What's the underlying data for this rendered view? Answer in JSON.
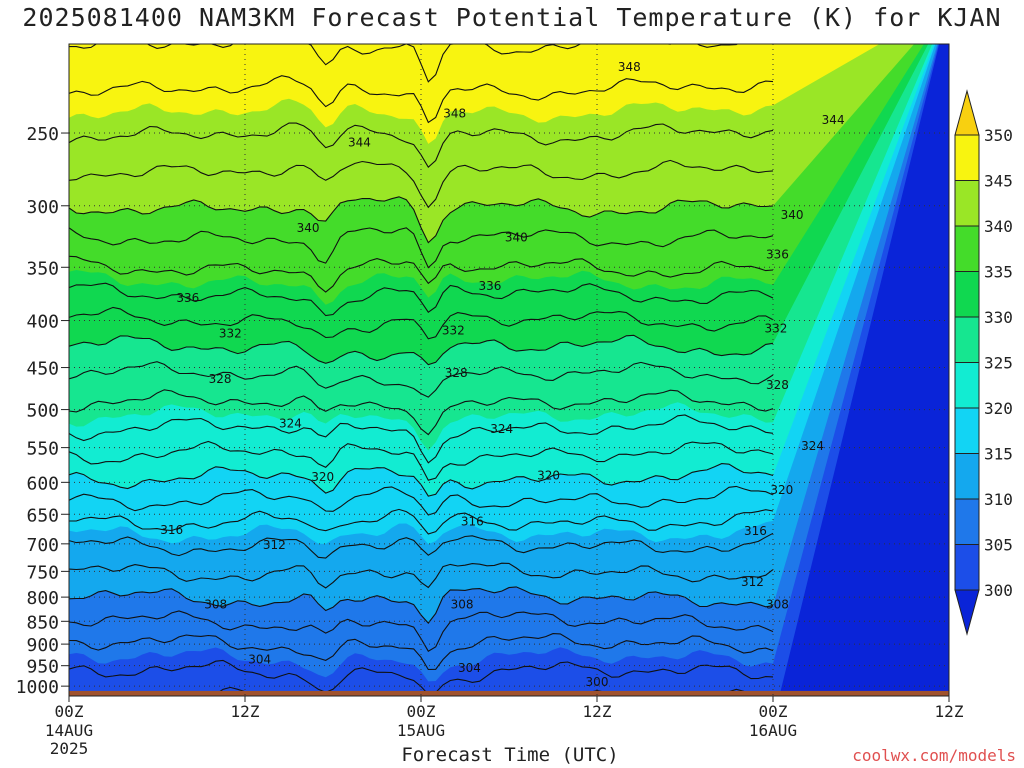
{
  "chart_data": {
    "type": "contour-filled",
    "title": "2025081400 NAM3KM Forecast Potential Temperature (K) for KJAN",
    "xlabel": "Forecast Time (UTC)",
    "ylabel": "",
    "credit": "coolwx.com/models",
    "x_hours": [
      0,
      48
    ],
    "x_ticks": [
      {
        "hour": 0,
        "label": "00Z",
        "sub": "14AUG",
        "sub2": "2025"
      },
      {
        "hour": 12,
        "label": "12Z",
        "sub": "",
        "sub2": ""
      },
      {
        "hour": 24,
        "label": "00Z",
        "sub": "15AUG",
        "sub2": ""
      },
      {
        "hour": 36,
        "label": "12Z",
        "sub": "",
        "sub2": ""
      },
      {
        "hour": 48,
        "label": "00Z",
        "sub": "16AUG",
        "sub2": ""
      },
      {
        "hour": 60,
        "label": "12Z",
        "sub": "",
        "sub2": ""
      }
    ],
    "x_range_hours": [
      0,
      60
    ],
    "y_scale": "log-pressure",
    "y_range_hpa": [
      1025,
      200
    ],
    "y_ticks": [
      250,
      300,
      350,
      400,
      450,
      500,
      550,
      600,
      650,
      700,
      750,
      800,
      850,
      900,
      950,
      1000
    ],
    "grid": true,
    "colorbar": {
      "levels": [
        300,
        305,
        310,
        315,
        320,
        325,
        330,
        335,
        340,
        345,
        350
      ],
      "colors": [
        "#0a24d8",
        "#1c4ee8",
        "#1f78ea",
        "#14a8ee",
        "#12d4f4",
        "#12ecd2",
        "#16e690",
        "#10d850",
        "#44dc2a",
        "#9ae626",
        "#f8f410",
        "#f8d010"
      ],
      "extend": "both"
    },
    "profile_levels_hpa": [
      1000,
      950,
      900,
      850,
      800,
      750,
      700,
      650,
      600,
      550,
      500,
      450,
      400,
      350,
      300,
      250,
      200
    ],
    "profile_theta_k": [
      303,
      304.5,
      306,
      308,
      310,
      312,
      314,
      316.5,
      319.5,
      322.5,
      325.5,
      328.5,
      332,
      336,
      340,
      344,
      348
    ],
    "contour_interval_k": 2,
    "contour_labels": [
      {
        "hour": 38.2,
        "hpa": 212,
        "value": "348"
      },
      {
        "hour": 26.3,
        "hpa": 238,
        "value": "348"
      },
      {
        "hour": 19.8,
        "hpa": 256,
        "value": "344"
      },
      {
        "hour": 52.1,
        "hpa": 242,
        "value": "344"
      },
      {
        "hour": 16.3,
        "hpa": 317,
        "value": "340"
      },
      {
        "hour": 30.5,
        "hpa": 325,
        "value": "340"
      },
      {
        "hour": 49.3,
        "hpa": 307,
        "value": "340"
      },
      {
        "hour": 8.1,
        "hpa": 378,
        "value": "336"
      },
      {
        "hour": 28.7,
        "hpa": 367,
        "value": "336"
      },
      {
        "hour": 48.3,
        "hpa": 339,
        "value": "336"
      },
      {
        "hour": 11.0,
        "hpa": 413,
        "value": "332"
      },
      {
        "hour": 26.2,
        "hpa": 410,
        "value": "332"
      },
      {
        "hour": 48.2,
        "hpa": 408,
        "value": "332"
      },
      {
        "hour": 10.3,
        "hpa": 463,
        "value": "328"
      },
      {
        "hour": 26.4,
        "hpa": 456,
        "value": "328"
      },
      {
        "hour": 48.3,
        "hpa": 470,
        "value": "328"
      },
      {
        "hour": 15.1,
        "hpa": 518,
        "value": "324"
      },
      {
        "hour": 29.5,
        "hpa": 525,
        "value": "324"
      },
      {
        "hour": 50.7,
        "hpa": 548,
        "value": "324"
      },
      {
        "hour": 17.3,
        "hpa": 592,
        "value": "320"
      },
      {
        "hour": 32.7,
        "hpa": 590,
        "value": "320"
      },
      {
        "hour": 48.6,
        "hpa": 612,
        "value": "320"
      },
      {
        "hour": 7.0,
        "hpa": 676,
        "value": "316"
      },
      {
        "hour": 27.5,
        "hpa": 662,
        "value": "316"
      },
      {
        "hour": 46.8,
        "hpa": 678,
        "value": "316"
      },
      {
        "hour": 14.0,
        "hpa": 702,
        "value": "312"
      },
      {
        "hour": 46.6,
        "hpa": 770,
        "value": "312"
      },
      {
        "hour": 10.0,
        "hpa": 815,
        "value": "308"
      },
      {
        "hour": 26.8,
        "hpa": 815,
        "value": "308"
      },
      {
        "hour": 48.3,
        "hpa": 815,
        "value": "308"
      },
      {
        "hour": 13.0,
        "hpa": 935,
        "value": "304"
      },
      {
        "hour": 27.3,
        "hpa": 955,
        "value": "304"
      },
      {
        "hour": 36.0,
        "hpa": 990,
        "value": "300"
      }
    ],
    "terrain_color": "#a0522d"
  }
}
